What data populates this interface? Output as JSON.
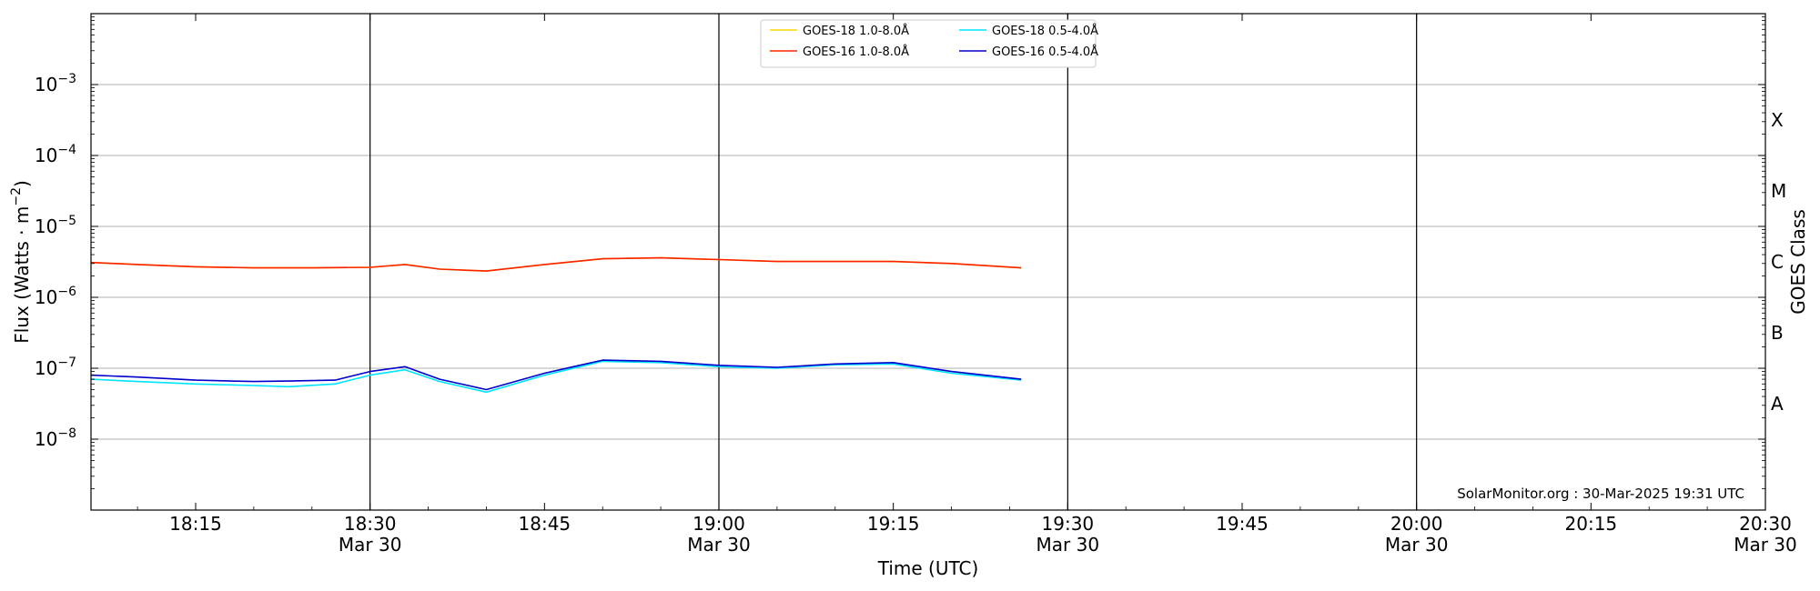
{
  "chart_data": {
    "type": "line",
    "xlabel": "Time (UTC)",
    "ylabel": "Flux (Watts · m",
    "ylabel_sup": "−2",
    "ylabel_close": ")",
    "right_label": "GOES Class",
    "yscale": "log",
    "ylim": [
      1e-09,
      0.01
    ],
    "xlim": [
      "18:06",
      "20:30"
    ],
    "y_ticks": [
      {
        "value": 1e-08,
        "base": "10",
        "exp": "−8"
      },
      {
        "value": 1e-07,
        "base": "10",
        "exp": "−7"
      },
      {
        "value": 1e-06,
        "base": "10",
        "exp": "−6"
      },
      {
        "value": 1e-05,
        "base": "10",
        "exp": "−5"
      },
      {
        "value": 0.0001,
        "base": "10",
        "exp": "−4"
      },
      {
        "value": 0.001,
        "base": "10",
        "exp": "−3"
      }
    ],
    "x_ticks": [
      {
        "time": "18:15",
        "label": "18:15",
        "sub": ""
      },
      {
        "time": "18:30",
        "label": "18:30",
        "sub": "Mar 30"
      },
      {
        "time": "18:45",
        "label": "18:45",
        "sub": ""
      },
      {
        "time": "19:00",
        "label": "19:00",
        "sub": "Mar 30"
      },
      {
        "time": "19:15",
        "label": "19:15",
        "sub": ""
      },
      {
        "time": "19:30",
        "label": "19:30",
        "sub": "Mar 30"
      },
      {
        "time": "19:45",
        "label": "19:45",
        "sub": ""
      },
      {
        "time": "20:00",
        "label": "20:00",
        "sub": "Mar 30"
      },
      {
        "time": "20:15",
        "label": "20:15",
        "sub": ""
      },
      {
        "time": "20:30",
        "label": "20:30",
        "sub": "Mar 30"
      }
    ],
    "vertical_lines": [
      "18:30",
      "19:00",
      "19:30",
      "20:00"
    ],
    "grid": "horizontal",
    "class_labels": [
      {
        "label": "X",
        "value": 0.000316
      },
      {
        "label": "M",
        "value": 3.16e-05
      },
      {
        "label": "C",
        "value": 3.16e-06
      },
      {
        "label": "B",
        "value": 3.16e-07
      },
      {
        "label": "A",
        "value": 3.16e-08
      }
    ],
    "legend_position": "top-center",
    "annotation": "SolarMonitor.org : 30-Mar-2025 19:31 UTC",
    "series": [
      {
        "name": "GOES-18 1.0-8.0Å",
        "color": "#FFD700",
        "x": [
          "18:06",
          "18:10",
          "18:15",
          "18:20",
          "18:25",
          "18:30",
          "18:33",
          "18:36",
          "18:40",
          "18:45",
          "18:50",
          "18:55",
          "19:00",
          "19:05",
          "19:10",
          "19:15",
          "19:20",
          "19:26"
        ],
        "y": [
          3.1e-06,
          2.9e-06,
          2.7e-06,
          2.6e-06,
          2.6e-06,
          2.65e-06,
          2.9e-06,
          2.5e-06,
          2.35e-06,
          2.9e-06,
          3.5e-06,
          3.6e-06,
          3.4e-06,
          3.2e-06,
          3.2e-06,
          3.2e-06,
          3e-06,
          2.6e-06
        ]
      },
      {
        "name": "GOES-16 1.0-8.0Å",
        "color": "#FF2200",
        "x": [
          "18:06",
          "18:10",
          "18:15",
          "18:20",
          "18:25",
          "18:30",
          "18:33",
          "18:36",
          "18:40",
          "18:45",
          "18:50",
          "18:55",
          "19:00",
          "19:05",
          "19:10",
          "19:15",
          "19:20",
          "19:26"
        ],
        "y": [
          3.1e-06,
          2.9e-06,
          2.7e-06,
          2.6e-06,
          2.6e-06,
          2.65e-06,
          2.9e-06,
          2.5e-06,
          2.35e-06,
          2.9e-06,
          3.5e-06,
          3.6e-06,
          3.4e-06,
          3.2e-06,
          3.2e-06,
          3.2e-06,
          3e-06,
          2.6e-06
        ]
      },
      {
        "name": "GOES-18 0.5-4.0Å",
        "color": "#00E5FF",
        "x": [
          "18:06",
          "18:10",
          "18:15",
          "18:20",
          "18:23",
          "18:27",
          "18:30",
          "18:33",
          "18:36",
          "18:40",
          "18:45",
          "18:50",
          "18:55",
          "19:00",
          "19:05",
          "19:10",
          "19:15",
          "19:20",
          "19:26"
        ],
        "y": [
          7e-08,
          6.5e-08,
          6e-08,
          5.7e-08,
          5.5e-08,
          6e-08,
          8e-08,
          9.5e-08,
          6.5e-08,
          4.6e-08,
          8e-08,
          1.25e-07,
          1.2e-07,
          1.05e-07,
          1e-07,
          1.12e-07,
          1.15e-07,
          8.5e-08,
          6.8e-08
        ]
      },
      {
        "name": "GOES-16 0.5-4.0Å",
        "color": "#0000CC",
        "x": [
          "18:06",
          "18:10",
          "18:15",
          "18:20",
          "18:23",
          "18:27",
          "18:30",
          "18:33",
          "18:36",
          "18:40",
          "18:45",
          "18:50",
          "18:55",
          "19:00",
          "19:05",
          "19:10",
          "19:15",
          "19:20",
          "19:26"
        ],
        "y": [
          8e-08,
          7.5e-08,
          6.8e-08,
          6.5e-08,
          6.6e-08,
          6.8e-08,
          9e-08,
          1.05e-07,
          7e-08,
          5e-08,
          8.5e-08,
          1.3e-07,
          1.25e-07,
          1.1e-07,
          1.03e-07,
          1.15e-07,
          1.2e-07,
          9e-08,
          7e-08
        ]
      }
    ]
  }
}
